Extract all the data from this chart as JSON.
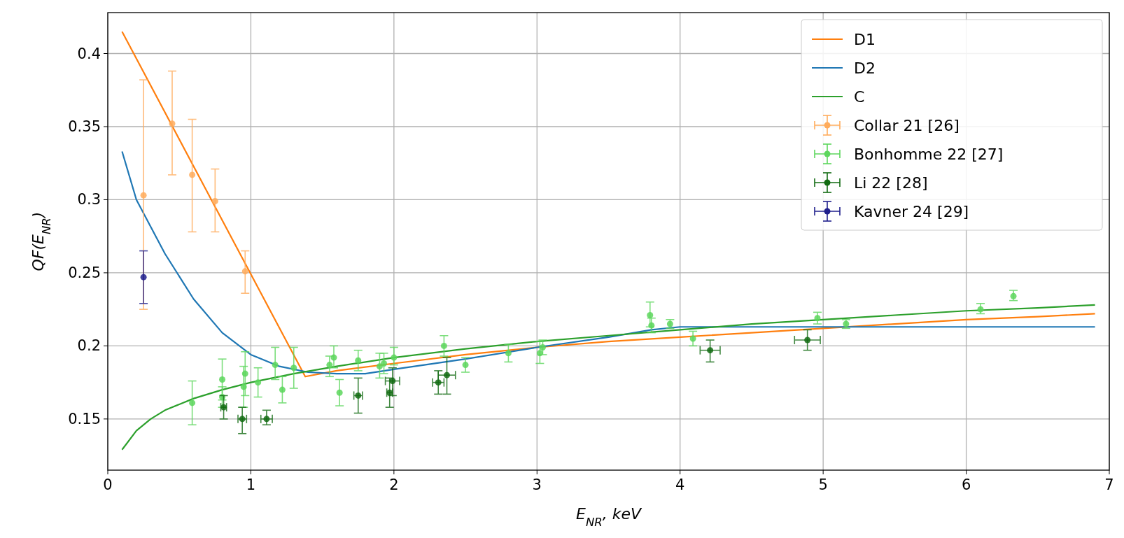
{
  "chart_data": {
    "type": "scatter",
    "xlabel": "E$_{NR}$, keV",
    "ylabel": "QF(E$_{NR}$)",
    "xlim": [
      0,
      7
    ],
    "xticks": [
      0,
      1,
      2,
      3,
      4,
      5,
      6,
      7
    ],
    "ylim": [
      0.115,
      0.428
    ],
    "yticks": [
      0.15,
      0.2,
      0.25,
      0.3,
      0.35,
      0.4
    ],
    "grid": true,
    "legend": "top right",
    "marker": "circle",
    "series": [
      {
        "name": "D1",
        "type": "line",
        "marker": "none",
        "color": "#ff7f0e",
        "x": [
          0.1,
          1.38,
          1.6,
          2,
          2.5,
          3,
          3.5,
          4,
          4.5,
          5,
          5.5,
          6,
          6.5,
          6.9
        ],
        "values": [
          0.415,
          0.179,
          0.183,
          0.188,
          0.194,
          0.199,
          0.203,
          0.206,
          0.209,
          0.212,
          0.215,
          0.218,
          0.22,
          0.222
        ]
      },
      {
        "name": "D2",
        "type": "line",
        "marker": "none",
        "color": "#1f77b4",
        "x": [
          0.1,
          0.2,
          0.4,
          0.6,
          0.8,
          1,
          1.2,
          1.4,
          1.6,
          1.8,
          2,
          2.5,
          3,
          3.5,
          3.8,
          4,
          4.5,
          5,
          6,
          6.9
        ],
        "values": [
          0.333,
          0.3,
          0.263,
          0.232,
          0.209,
          0.194,
          0.186,
          0.182,
          0.181,
          0.181,
          0.184,
          0.191,
          0.199,
          0.206,
          0.211,
          0.213,
          0.213,
          0.213,
          0.213,
          0.213
        ]
      },
      {
        "name": "C",
        "type": "line",
        "marker": "none",
        "color": "#2ca02c",
        "x": [
          0.1,
          0.2,
          0.3,
          0.4,
          0.6,
          0.8,
          1,
          1.3,
          1.6,
          2,
          2.5,
          3,
          3.5,
          4,
          4.5,
          5,
          5.5,
          6,
          6.5,
          6.9
        ],
        "values": [
          0.129,
          0.142,
          0.15,
          0.156,
          0.164,
          0.17,
          0.175,
          0.181,
          0.186,
          0.192,
          0.198,
          0.203,
          0.207,
          0.211,
          0.215,
          0.218,
          0.221,
          0.224,
          0.226,
          0.228
        ]
      },
      {
        "name": "Collar 21 [26]",
        "type": "scatter",
        "color": "#ffac5c",
        "x": [
          0.25,
          0.45,
          0.59,
          0.75,
          0.96
        ],
        "values": [
          0.303,
          0.352,
          0.317,
          0.299,
          0.251
        ],
        "errors": [
          [
            0.225,
            0.382
          ],
          [
            0.317,
            0.388
          ],
          [
            0.278,
            0.355
          ],
          [
            0.278,
            0.321
          ],
          [
            0.236,
            0.265
          ]
        ]
      },
      {
        "name": "Bonhomme 22 [27]",
        "type": "scatter",
        "color": "#5cd65c",
        "x": [
          0.59,
          0.8,
          0.8,
          0.95,
          0.96,
          1.05,
          1.17,
          1.22,
          1.3,
          1.55,
          1.58,
          1.62,
          1.75,
          1.9,
          1.93,
          2,
          2.35,
          2.5,
          2.8,
          3.02,
          3.04,
          3.79,
          3.8,
          3.93,
          4.09,
          4.96,
          5.16,
          6.1,
          6.33
        ],
        "values": [
          0.161,
          0.165,
          0.177,
          0.172,
          0.181,
          0.175,
          0.187,
          0.17,
          0.185,
          0.187,
          0.192,
          0.168,
          0.19,
          0.186,
          0.188,
          0.192,
          0.2,
          0.187,
          0.195,
          0.195,
          0.199,
          0.221,
          0.214,
          0.215,
          0.205,
          0.219,
          0.215,
          0.225,
          0.234
        ],
        "errors": [
          [
            0.146,
            0.176
          ],
          [
            0.158,
            0.172
          ],
          [
            0.163,
            0.191
          ],
          [
            0.158,
            0.186
          ],
          [
            0.166,
            0.196
          ],
          [
            0.165,
            0.185
          ],
          [
            0.177,
            0.199
          ],
          [
            0.161,
            0.179
          ],
          [
            0.171,
            0.199
          ],
          [
            0.179,
            0.193
          ],
          [
            0.185,
            0.2
          ],
          [
            0.159,
            0.177
          ],
          [
            0.183,
            0.197
          ],
          [
            0.178,
            0.195
          ],
          [
            0.181,
            0.195
          ],
          [
            0.187,
            0.199
          ],
          [
            0.193,
            0.207
          ],
          [
            0.182,
            0.192
          ],
          [
            0.189,
            0.201
          ],
          [
            0.188,
            0.203
          ],
          [
            0.194,
            0.204
          ],
          [
            0.213,
            0.23
          ],
          [
            0.209,
            0.219
          ],
          [
            0.212,
            0.218
          ],
          [
            0.2,
            0.21
          ],
          [
            0.215,
            0.223
          ],
          [
            0.212,
            0.218
          ],
          [
            0.222,
            0.229
          ],
          [
            0.231,
            0.238
          ]
        ]
      },
      {
        "name": "Li 22 [28]",
        "type": "scatter",
        "color": "#126b12",
        "x": [
          0.81,
          0.94,
          1.11,
          1.75,
          1.97,
          1.99,
          2.31,
          2.37,
          4.21,
          4.89
        ],
        "values": [
          0.158,
          0.15,
          0.15,
          0.166,
          0.168,
          0.176,
          0.175,
          0.18,
          0.197,
          0.204
        ],
        "errors": [
          [
            0.15,
            0.166
          ],
          [
            0.14,
            0.158
          ],
          [
            0.146,
            0.156
          ],
          [
            0.154,
            0.178
          ],
          [
            0.158,
            0.178
          ],
          [
            0.166,
            0.185
          ],
          [
            0.167,
            0.183
          ],
          [
            0.167,
            0.192
          ],
          [
            0.189,
            0.204
          ],
          [
            0.197,
            0.211
          ]
        ],
        "xerrors": [
          0.02,
          0.03,
          0.04,
          0.03,
          0.02,
          0.05,
          0.04,
          0.06,
          0.07,
          0.09
        ]
      },
      {
        "name": "Kavner 24 [29]",
        "type": "scatter",
        "color": "#1f1f8c",
        "x": [
          0.25
        ],
        "values": [
          0.247
        ],
        "errors": [
          [
            0.229,
            0.265
          ]
        ]
      }
    ]
  }
}
